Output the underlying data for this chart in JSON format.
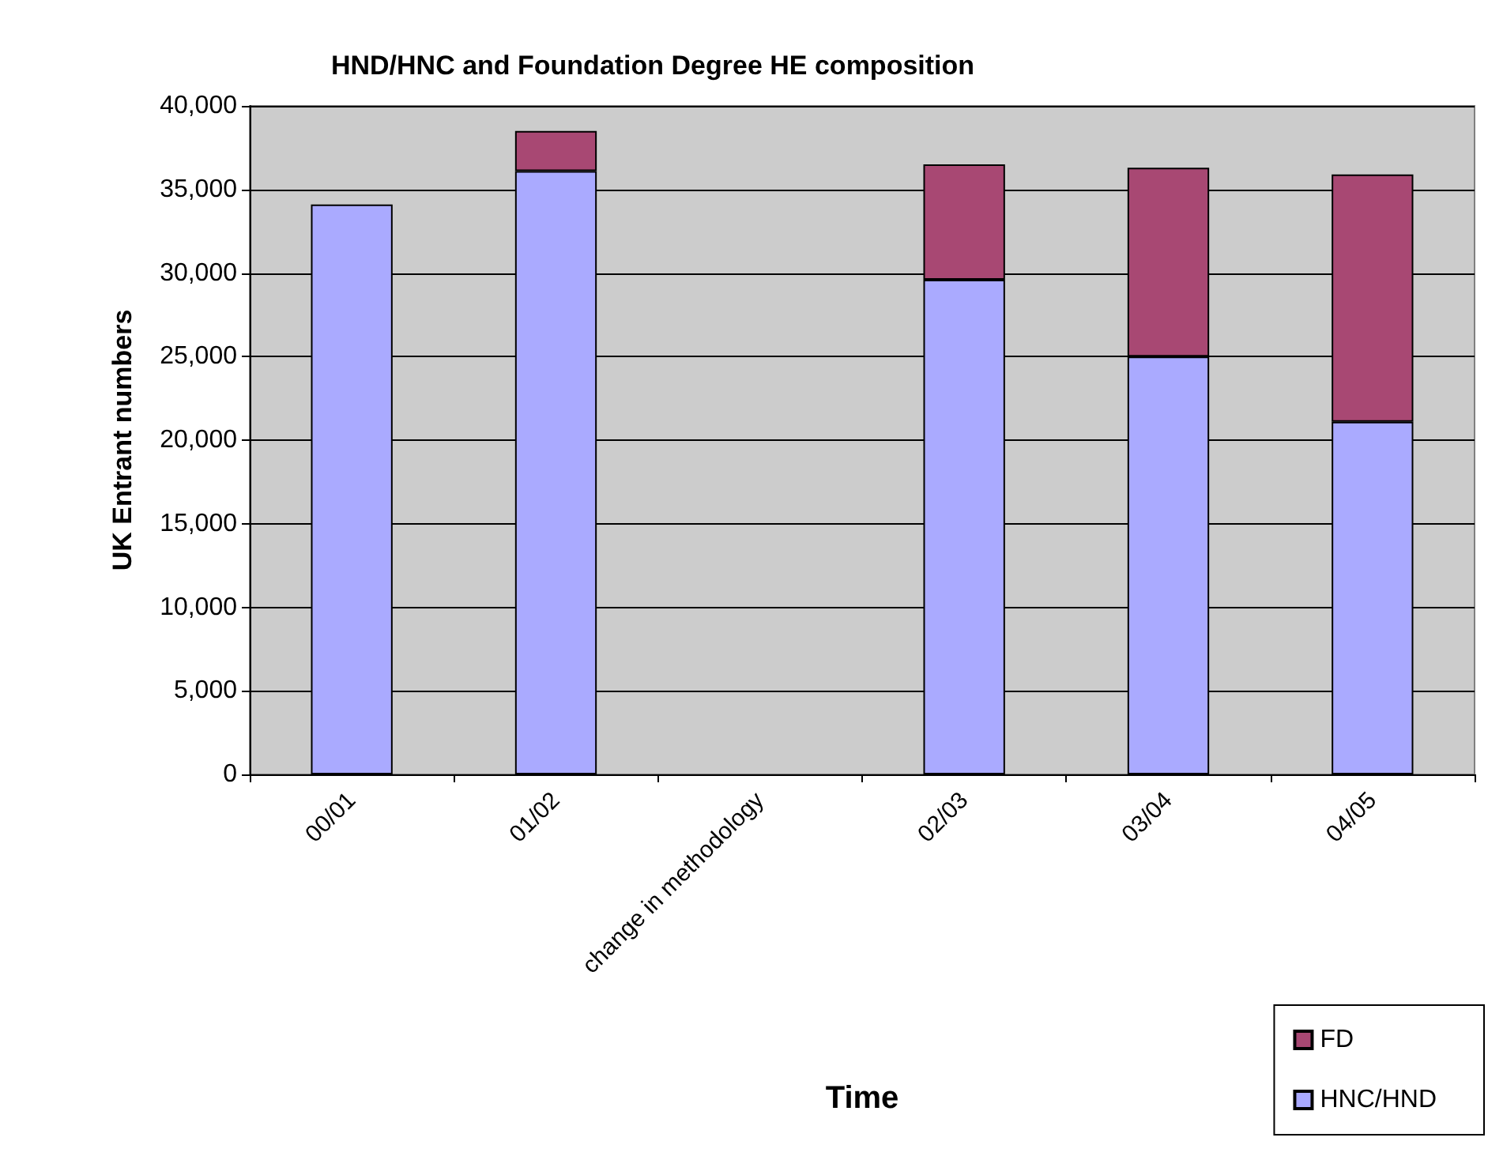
{
  "chart_data": {
    "type": "bar",
    "title": "HND/HNC and Foundation Degree HE composition",
    "xlabel": "Time",
    "ylabel": "UK Entrant numbers",
    "categories": [
      "00/01",
      "01/02",
      "change in methodology",
      "02/03",
      "03/04",
      "04/05"
    ],
    "stacked": true,
    "series": [
      {
        "name": "HNC/HND",
        "color": "#aaaaff",
        "values": [
          34100,
          36100,
          null,
          29600,
          25000,
          21100
        ]
      },
      {
        "name": "FD",
        "color": "#a84873",
        "values": [
          null,
          2400,
          null,
          6900,
          11300,
          14800
        ]
      }
    ],
    "ylim": [
      0,
      40000
    ],
    "yticks": [
      0,
      {
        "value": 5000,
        "label": "5,000"
      },
      {
        "value": 10000,
        "label": "10,000"
      },
      {
        "value": 15000,
        "label": "15,000"
      },
      {
        "value": 20000,
        "label": "20,000"
      },
      {
        "value": 25000,
        "label": "25,000"
      },
      {
        "value": 30000,
        "label": "30,000"
      },
      {
        "value": 35000,
        "label": "35,000"
      },
      {
        "value": 40000,
        "label": "40,000"
      }
    ],
    "grid": "y",
    "legend": "bottom right"
  }
}
